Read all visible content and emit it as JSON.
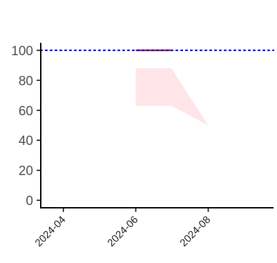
{
  "chart_data": {
    "type": "line",
    "title": "",
    "xlabel": "",
    "ylabel": "",
    "x_axis": {
      "type": "date",
      "range": [
        "2024-03-13",
        "2024-09-25"
      ],
      "ticks": [
        {
          "date": "2024-04-01",
          "label": "2024-04"
        },
        {
          "date": "2024-06-01",
          "label": "2024-06"
        },
        {
          "date": "2024-08-01",
          "label": "2024-08"
        }
      ]
    },
    "y_axis": {
      "range": [
        -5,
        105
      ],
      "ticks": [
        0,
        20,
        40,
        60,
        80,
        100
      ]
    },
    "grid": false,
    "legend": "none",
    "reference_line": {
      "y": 100,
      "style": "dotted",
      "color": "#0000ff"
    },
    "band": {
      "color": "#ffe4e8",
      "upper": [
        {
          "x": "2024-06-01",
          "y": 88
        },
        {
          "x": "2024-07-01",
          "y": 88
        },
        {
          "x": "2024-08-01",
          "y": 50
        }
      ],
      "lower": [
        {
          "x": "2024-06-01",
          "y": 63
        },
        {
          "x": "2024-07-01",
          "y": 63
        },
        {
          "x": "2024-08-01",
          "y": 50
        }
      ]
    },
    "series": [
      {
        "color": "#b22222",
        "points": [
          {
            "x": "2024-06-01",
            "y": 100
          },
          {
            "x": "2024-07-01",
            "y": 100
          }
        ]
      }
    ]
  }
}
